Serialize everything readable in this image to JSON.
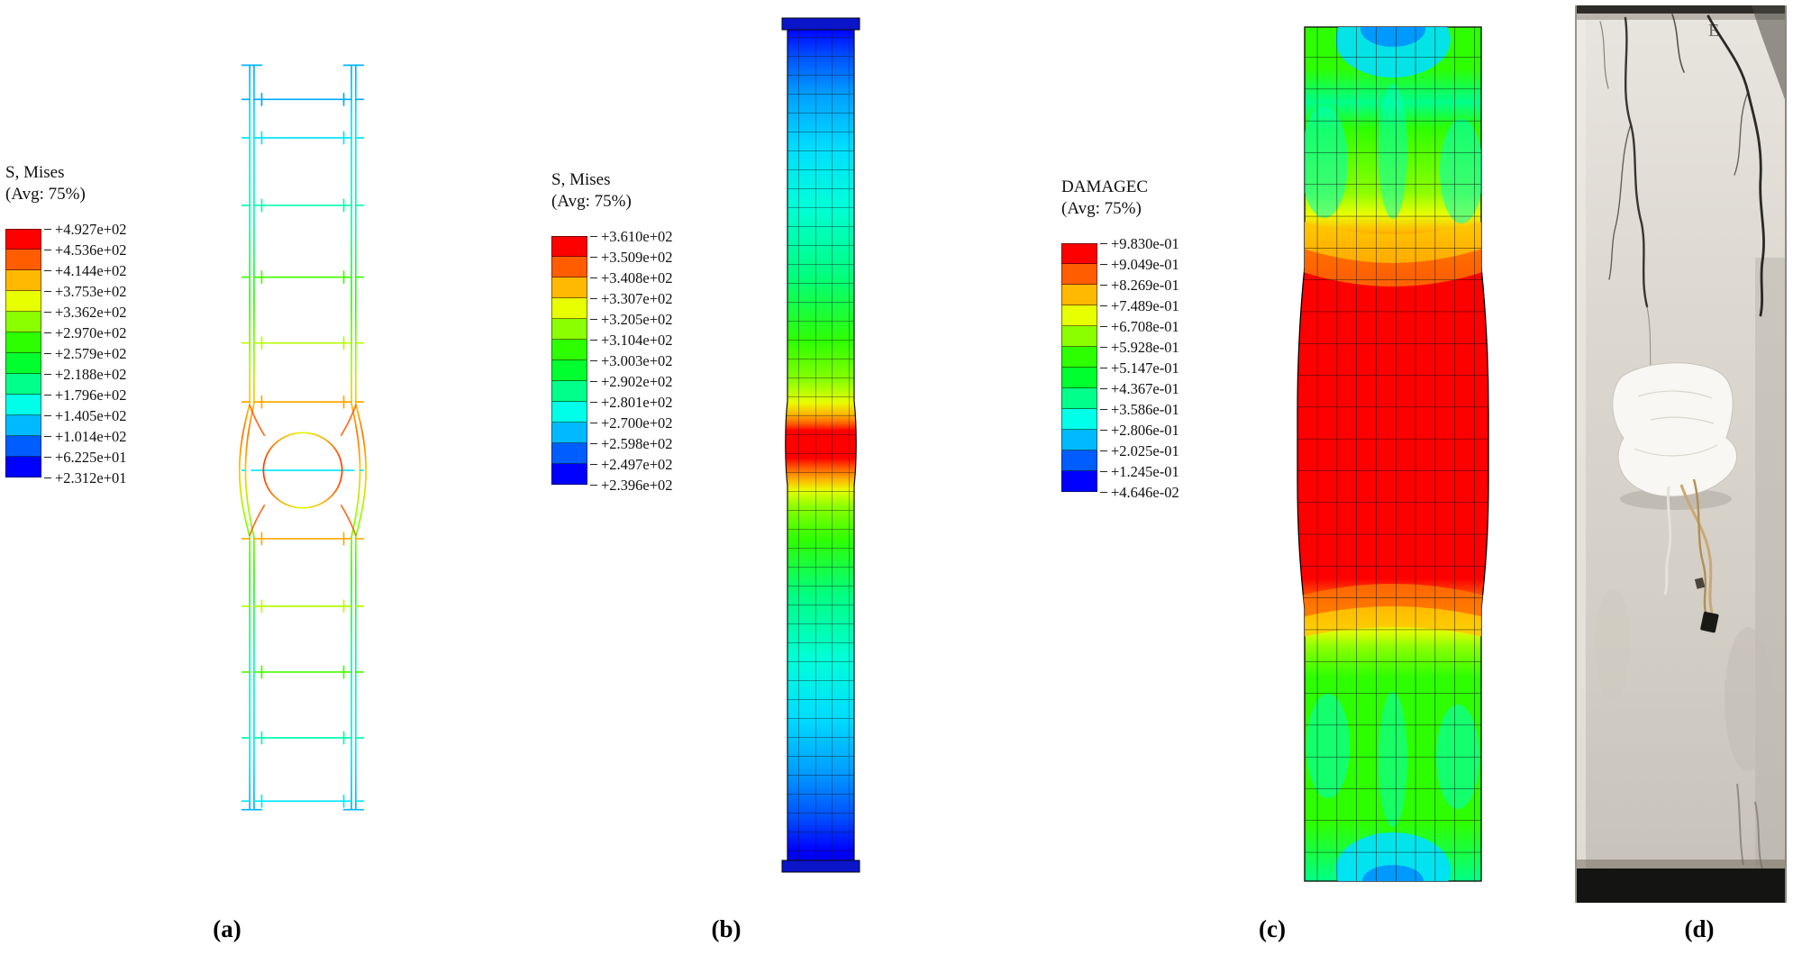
{
  "figure": {
    "background_color": "#ffffff",
    "spectrum_colors": [
      "#ff0000",
      "#ff5d00",
      "#ffb900",
      "#e8ff00",
      "#8bff00",
      "#2eff00",
      "#00ff2e",
      "#00ff8b",
      "#00ffe8",
      "#00b9ff",
      "#005dff",
      "#0000ff"
    ],
    "panels": {
      "a": {
        "caption": "(a)",
        "legend": {
          "title": "S, Mises",
          "subtitle": "(Avg: 75%)",
          "labels": [
            "+4.927e+02",
            "+4.536e+02",
            "+4.144e+02",
            "+3.753e+02",
            "+3.362e+02",
            "+2.970e+02",
            "+2.579e+02",
            "+2.188e+02",
            "+1.796e+02",
            "+1.405e+02",
            "+1.014e+02",
            "+6.225e+01",
            "+2.312e+01"
          ]
        }
      },
      "b": {
        "caption": "(b)",
        "legend": {
          "title": "S, Mises",
          "subtitle": "(Avg: 75%)",
          "labels": [
            "+3.610e+02",
            "+3.509e+02",
            "+3.408e+02",
            "+3.307e+02",
            "+3.205e+02",
            "+3.104e+02",
            "+3.003e+02",
            "+2.902e+02",
            "+2.801e+02",
            "+2.700e+02",
            "+2.598e+02",
            "+2.497e+02",
            "+2.396e+02"
          ]
        }
      },
      "c": {
        "caption": "(c)",
        "legend": {
          "title": "DAMAGEC",
          "subtitle": "(Avg: 75%)",
          "labels": [
            "+9.830e-01",
            "+9.049e-01",
            "+8.269e-01",
            "+7.489e-01",
            "+6.708e-01",
            "+5.928e-01",
            "+5.147e-01",
            "+4.367e-01",
            "+3.586e-01",
            "+2.806e-01",
            "+2.025e-01",
            "+1.245e-01",
            "+4.646e-02"
          ]
        }
      },
      "d": {
        "caption": "(d)",
        "marking": "E"
      }
    }
  }
}
